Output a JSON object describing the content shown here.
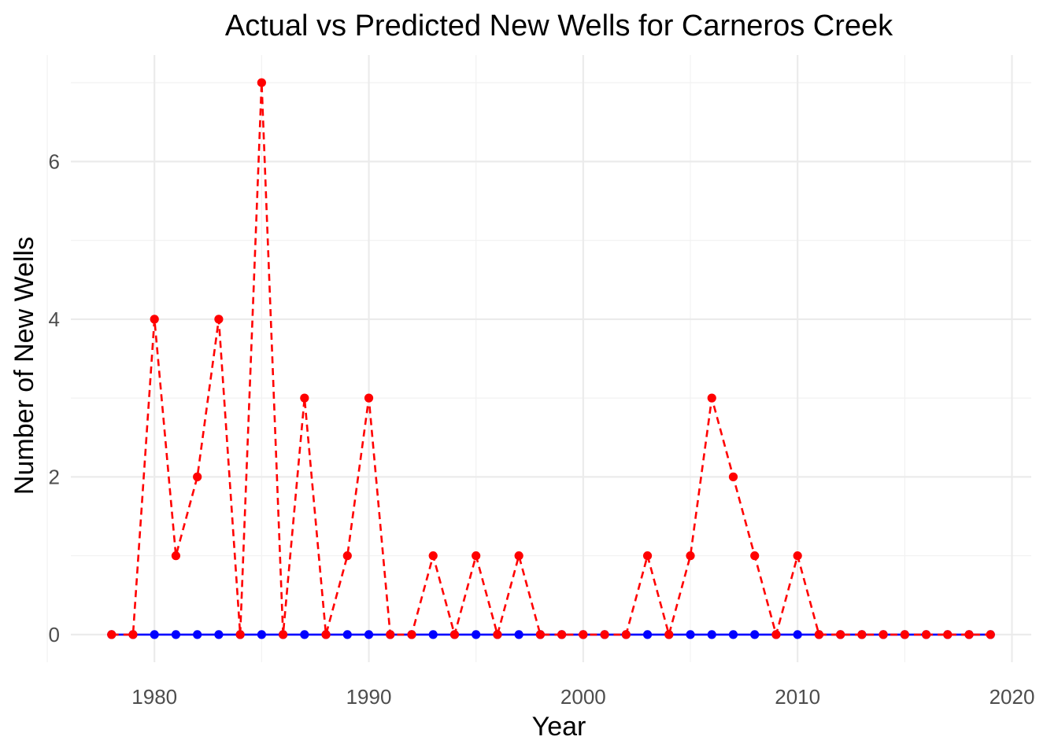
{
  "chart_data": {
    "type": "line",
    "title": "Actual vs Predicted New Wells for Carneros Creek",
    "xlabel": "Year",
    "ylabel": "Number of New Wells",
    "xlim": [
      1976.1,
      2020.9
    ],
    "ylim": [
      -0.35,
      7.35
    ],
    "x_ticks": [
      1980,
      1990,
      2000,
      2010,
      2020
    ],
    "y_ticks": [
      0,
      2,
      4,
      6
    ],
    "grid": true,
    "legend": "none",
    "x": [
      1978,
      1979,
      1980,
      1981,
      1982,
      1983,
      1984,
      1985,
      1986,
      1987,
      1988,
      1989,
      1990,
      1991,
      1992,
      1993,
      1994,
      1995,
      1996,
      1997,
      1998,
      1999,
      2000,
      2001,
      2002,
      2003,
      2004,
      2005,
      2006,
      2007,
      2008,
      2009,
      2010,
      2011,
      2012,
      2013,
      2014,
      2015,
      2016,
      2017,
      2018,
      2019
    ],
    "series": [
      {
        "color": "#0000ff",
        "line_style": "solid",
        "values": [
          0,
          0,
          0,
          0,
          0,
          0,
          0,
          0,
          0,
          0,
          0,
          0,
          0,
          0,
          0,
          0,
          0,
          0,
          0,
          0,
          0,
          0,
          0,
          0,
          0,
          0,
          0,
          0,
          0,
          0,
          0,
          0,
          0,
          0,
          0,
          0,
          0,
          0,
          0,
          0,
          0,
          0
        ]
      },
      {
        "color": "#ff0000",
        "line_style": "dashed",
        "values": [
          0,
          0,
          4,
          1,
          2,
          4,
          0,
          7,
          0,
          3,
          0,
          1,
          3,
          0,
          0,
          1,
          0,
          1,
          0,
          1,
          0,
          0,
          0,
          0,
          0,
          1,
          0,
          1,
          3,
          2,
          1,
          0,
          1,
          0,
          0,
          0,
          0,
          0,
          0,
          0,
          0,
          0
        ]
      }
    ]
  }
}
